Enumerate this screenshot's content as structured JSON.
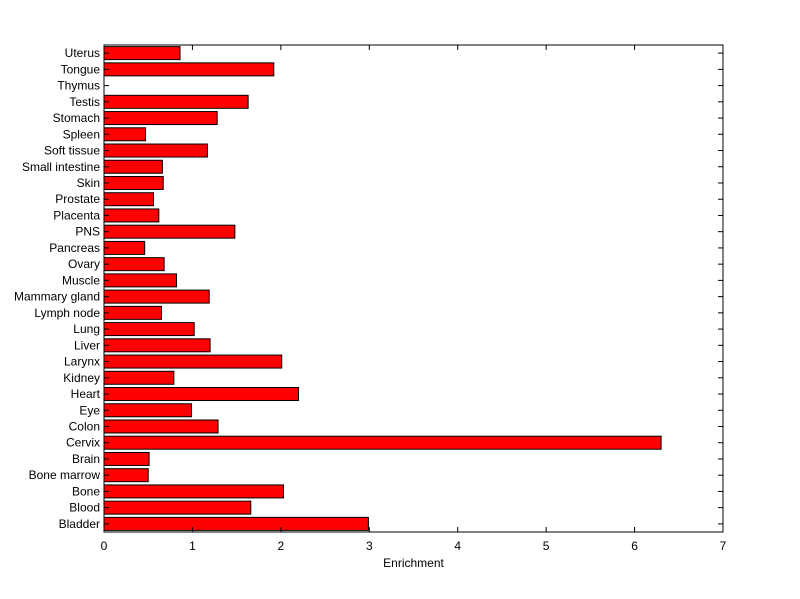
{
  "chart_data": {
    "type": "bar",
    "orientation": "horizontal",
    "xlabel": "Enrichment",
    "xlim": [
      0,
      7
    ],
    "xticks": [
      0,
      1,
      2,
      3,
      4,
      5,
      6,
      7
    ],
    "grid": false,
    "bar_color": "#ff0000",
    "categories": [
      "Uterus",
      "Tongue",
      "Thymus",
      "Testis",
      "Stomach",
      "Spleen",
      "Soft tissue",
      "Small intestine",
      "Skin",
      "Prostate",
      "Placenta",
      "PNS",
      "Pancreas",
      "Ovary",
      "Muscle",
      "Mammary gland",
      "Lymph node",
      "Lung",
      "Liver",
      "Larynx",
      "Kidney",
      "Heart",
      "Eye",
      "Colon",
      "Cervix",
      "Brain",
      "Bone marrow",
      "Bone",
      "Blood",
      "Bladder"
    ],
    "values": [
      0.86,
      1.92,
      0,
      1.63,
      1.28,
      0.47,
      1.17,
      0.66,
      0.67,
      0.56,
      0.62,
      1.48,
      0.46,
      0.68,
      0.82,
      1.19,
      0.65,
      1.02,
      1.2,
      2.01,
      0.79,
      2.2,
      0.99,
      1.29,
      6.3,
      0.51,
      0.5,
      2.03,
      1.66,
      2.99
    ]
  }
}
